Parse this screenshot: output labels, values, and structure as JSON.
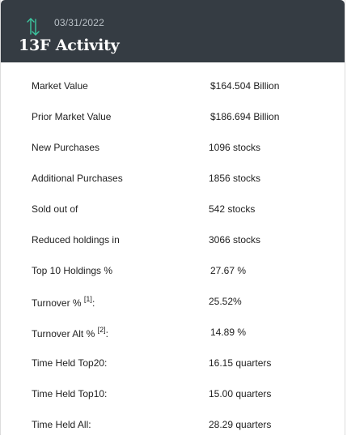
{
  "header": {
    "icon": "sort-arrows-icon",
    "date": "03/31/2022",
    "title": "13F Activity",
    "icon_color": "#3cc7a0",
    "background": "#353c43"
  },
  "rows": [
    {
      "label": "Market Value",
      "value": "$164.504 Billion"
    },
    {
      "label": "Prior Market Value",
      "value": "$186.694 Billion"
    },
    {
      "label": "New Purchases",
      "value": "1096 stocks"
    },
    {
      "label": "Additional Purchases",
      "value": "1856 stocks"
    },
    {
      "label": "Sold out of",
      "value": "542 stocks"
    },
    {
      "label": "Reduced holdings in",
      "value": "3066 stocks"
    },
    {
      "label": "Top 10 Holdings %",
      "value": "27.67 %"
    },
    {
      "label": "Turnover %",
      "note": "[1]",
      "suffix": ":",
      "value": "25.52%"
    },
    {
      "label": "Turnover Alt %",
      "note": "[2]",
      "suffix": ":",
      "value": "14.89 %"
    },
    {
      "label": "Time Held Top20:",
      "value": "16.15 quarters"
    },
    {
      "label": "Time Held Top10:",
      "value": "15.00 quarters"
    },
    {
      "label": "Time Held All:",
      "value": "28.29 quarters"
    }
  ]
}
